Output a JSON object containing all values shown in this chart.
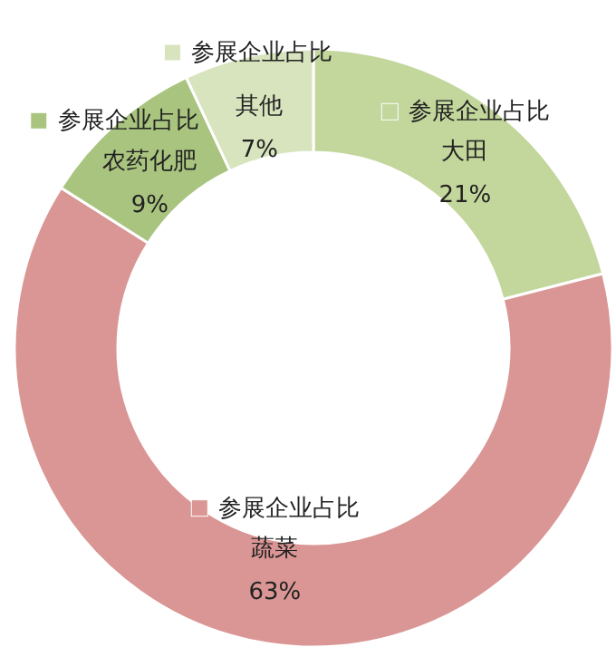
{
  "chart_data": {
    "type": "donut",
    "categories": [
      "大田",
      "蔬菜",
      "农药化肥",
      "其他"
    ],
    "series": [
      {
        "name": "参展企业占比",
        "values": [
          21,
          63,
          9,
          7
        ]
      }
    ],
    "colors": [
      "#c3d69b",
      "#d99694",
      "#a9c47f",
      "#d7e4bd"
    ],
    "value_labels": [
      "21%",
      "63%",
      "9%",
      "7%"
    ]
  }
}
